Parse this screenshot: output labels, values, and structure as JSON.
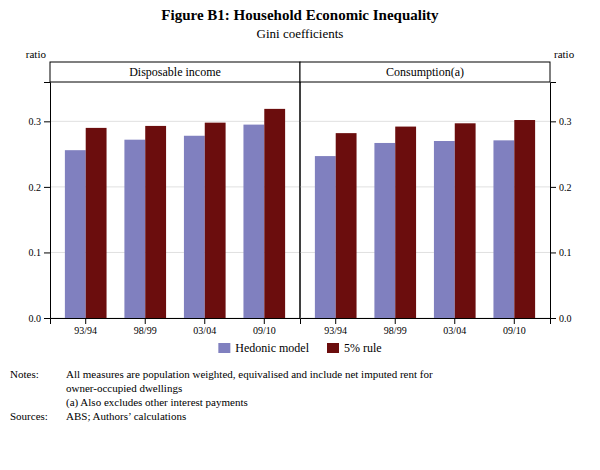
{
  "title": "Figure B1: Household Economic Inequality",
  "subtitle": "Gini coefficients",
  "annotations": [
    {
      "label": "Notes:",
      "lines": [
        "All measures are population weighted, equivalised and include net imputed rent for",
        "owner-occupied dwellings",
        "(a) Also excludes other interest payments"
      ]
    },
    {
      "label": "Sources:",
      "lines": [
        "ABS; Authors’ calculations"
      ]
    }
  ],
  "chart_data": [
    {
      "type": "bar",
      "title": "Disposable income",
      "ylabel": "ratio",
      "categories": [
        "93/94",
        "98/99",
        "03/04",
        "09/10"
      ],
      "series": [
        {
          "name": "Hedonic model",
          "color": "#8080bf",
          "values": [
            0.256,
            0.272,
            0.278,
            0.295
          ]
        },
        {
          "name": "5% rule",
          "color": "#6b0d0d",
          "values": [
            0.29,
            0.293,
            0.298,
            0.319
          ]
        }
      ],
      "ylim": [
        0.0,
        0.36
      ],
      "yticks": [
        {
          "value": 0.0,
          "label": "0.0"
        },
        0.1,
        0.2,
        0.3
      ],
      "grid": true,
      "legend": "bottom"
    },
    {
      "type": "bar",
      "title": "Consumption(a)",
      "ylabel": "ratio",
      "categories": [
        "93/94",
        "98/99",
        "03/04",
        "09/10"
      ],
      "series": [
        {
          "name": "Hedonic model",
          "color": "#8080bf",
          "values": [
            0.247,
            0.267,
            0.27,
            0.271
          ]
        },
        {
          "name": "5% rule",
          "color": "#6b0d0d",
          "values": [
            0.282,
            0.292,
            0.297,
            0.302
          ]
        }
      ],
      "ylim": [
        0.0,
        0.36
      ],
      "yticks": [
        {
          "value": 0.0,
          "label": "0.0"
        },
        0.1,
        0.2,
        0.3
      ],
      "grid": true
    }
  ]
}
